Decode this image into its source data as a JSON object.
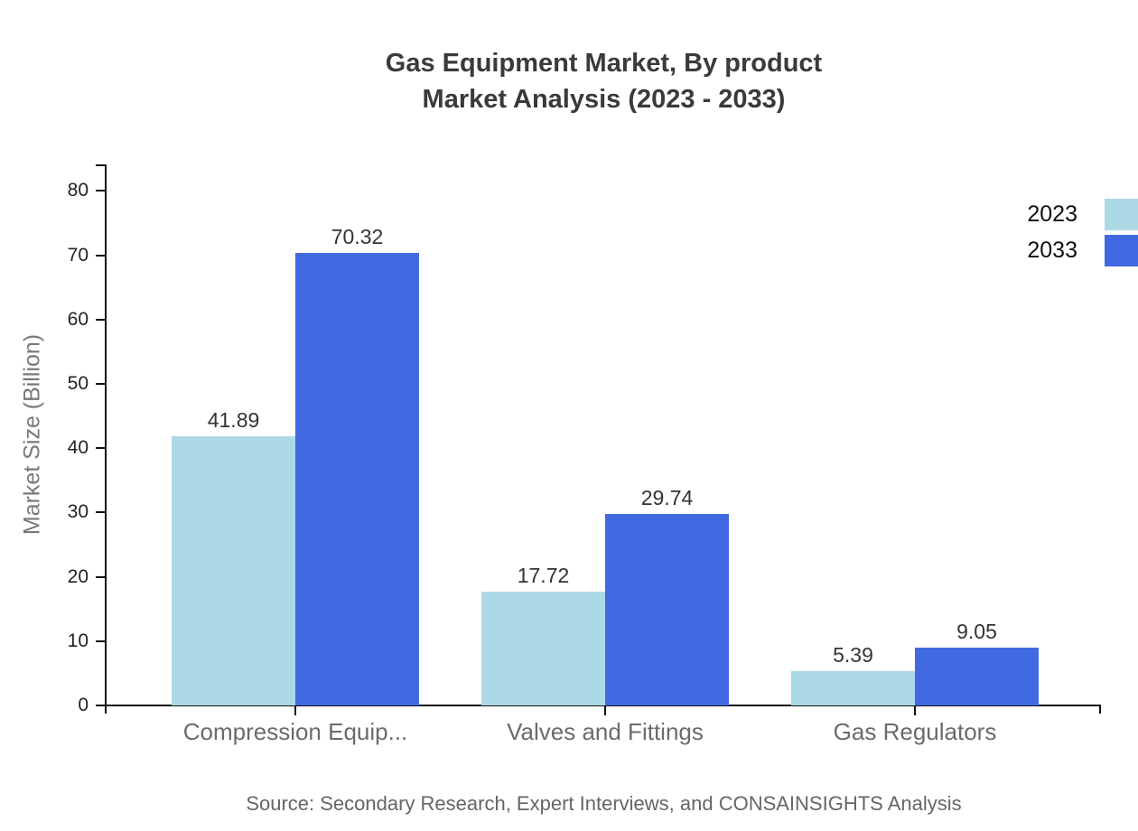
{
  "title": {
    "line1": "Gas Equipment Market, By product",
    "line2": "Market Analysis (2023 - 2033)"
  },
  "source": "Source: Secondary Research, Expert Interviews, and CONSAINSIGHTS Analysis",
  "chart_data": {
    "type": "bar",
    "title": "Gas Equipment Market, By product Market Analysis (2023 - 2033)",
    "categories": [
      "Compression Equip...",
      "Valves and Fittings",
      "Gas Regulators"
    ],
    "series": [
      {
        "name": "2023",
        "color": "#ADD8E6",
        "values": [
          41.89,
          17.72,
          5.39
        ]
      },
      {
        "name": "2033",
        "color": "#4169E1",
        "values": [
          70.32,
          29.74,
          9.05
        ]
      }
    ],
    "xlabel": "",
    "ylabel": "Market Size (Billion)",
    "ylim": [
      0,
      84
    ],
    "yticks": [
      0,
      10,
      20,
      30,
      40,
      50,
      60,
      70,
      80
    ],
    "grid": false,
    "value_labels": true,
    "legend_position": "top-right"
  }
}
